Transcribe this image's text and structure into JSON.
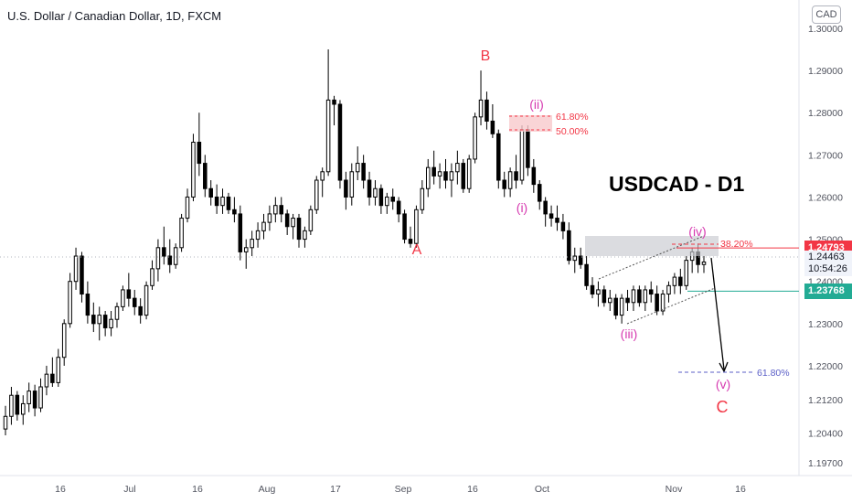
{
  "header": {
    "title": "U.S. Dollar / Canadian Dollar, 1D, FXCM",
    "currency_button": "CAD"
  },
  "price_tags": {
    "upper": {
      "value": "1.24793",
      "color": "#f23645"
    },
    "current": {
      "value": "1.24463",
      "countdown": "10:54:26"
    },
    "lower": {
      "value": "1.23768",
      "color": "#22ab94"
    }
  },
  "annotations": {
    "main_title": "USDCAD - D1",
    "wave_A": "A",
    "wave_B": "B",
    "wave_C": "C",
    "wave_i": "(i)",
    "wave_ii": "(ii)",
    "wave_iii": "(iii)",
    "wave_iv": "(iv)",
    "wave_v": "(v)",
    "fib_618_top": "61.80%",
    "fib_500": "50.00%",
    "fib_382": "38.20%",
    "fib_618_target": "61.80%"
  },
  "colors": {
    "up_candle": "#ffffff",
    "down_candle": "#000000",
    "wave_major": "#f23645",
    "wave_minor": "#d63ab0",
    "resistance_line": "#f23645",
    "support_line": "#22ab94",
    "target_line": "#5b5fc7"
  },
  "chart_data": {
    "type": "candlestick",
    "symbol": "USDCAD",
    "timeframe": "1D",
    "y_axis": {
      "min": 1.195,
      "max": 1.302,
      "ticks": [
        "1.30000",
        "1.29000",
        "1.28000",
        "1.27000",
        "1.26000",
        "1.25000",
        "1.24000",
        "1.23000",
        "1.22000",
        "1.21200",
        "1.20400",
        "1.19700"
      ]
    },
    "x_axis_labels": [
      "16",
      "Jul",
      "16",
      "Aug",
      "17",
      "Sep",
      "16",
      "Oct",
      "Nov",
      "16"
    ],
    "candles": [
      [
        1.205,
        1.2105,
        1.2035,
        1.208
      ],
      [
        1.208,
        1.215,
        1.206,
        1.213
      ],
      [
        1.213,
        1.214,
        1.207,
        1.2085
      ],
      [
        1.2085,
        1.213,
        1.206,
        1.211
      ],
      [
        1.211,
        1.216,
        1.209,
        1.214
      ],
      [
        1.214,
        1.2155,
        1.208,
        1.21
      ],
      [
        1.21,
        1.217,
        1.209,
        1.215
      ],
      [
        1.215,
        1.22,
        1.213,
        1.218
      ],
      [
        1.218,
        1.222,
        1.215,
        1.216
      ],
      [
        1.216,
        1.224,
        1.215,
        1.222
      ],
      [
        1.222,
        1.231,
        1.22,
        1.23
      ],
      [
        1.23,
        1.242,
        1.229,
        1.24
      ],
      [
        1.24,
        1.248,
        1.238,
        1.246
      ],
      [
        1.246,
        1.247,
        1.235,
        1.237
      ],
      [
        1.237,
        1.24,
        1.23,
        1.232
      ],
      [
        1.232,
        1.235,
        1.228,
        1.23
      ],
      [
        1.23,
        1.234,
        1.226,
        1.232
      ],
      [
        1.232,
        1.233,
        1.227,
        1.229
      ],
      [
        1.229,
        1.233,
        1.227,
        1.231
      ],
      [
        1.231,
        1.235,
        1.229,
        1.234
      ],
      [
        1.234,
        1.239,
        1.233,
        1.238
      ],
      [
        1.238,
        1.242,
        1.234,
        1.236
      ],
      [
        1.236,
        1.238,
        1.232,
        1.234
      ],
      [
        1.234,
        1.236,
        1.23,
        1.232
      ],
      [
        1.232,
        1.24,
        1.231,
        1.239
      ],
      [
        1.239,
        1.245,
        1.238,
        1.243
      ],
      [
        1.243,
        1.25,
        1.24,
        1.248
      ],
      [
        1.248,
        1.253,
        1.244,
        1.246
      ],
      [
        1.246,
        1.25,
        1.242,
        1.244
      ],
      [
        1.244,
        1.249,
        1.243,
        1.248
      ],
      [
        1.248,
        1.256,
        1.247,
        1.255
      ],
      [
        1.255,
        1.262,
        1.254,
        1.26
      ],
      [
        1.26,
        1.275,
        1.259,
        1.273
      ],
      [
        1.273,
        1.28,
        1.265,
        1.268
      ],
      [
        1.268,
        1.27,
        1.26,
        1.262
      ],
      [
        1.262,
        1.264,
        1.258,
        1.26
      ],
      [
        1.26,
        1.263,
        1.256,
        1.258
      ],
      [
        1.258,
        1.262,
        1.256,
        1.26
      ],
      [
        1.26,
        1.261,
        1.256,
        1.257
      ],
      [
        1.257,
        1.26,
        1.254,
        1.256
      ],
      [
        1.256,
        1.258,
        1.245,
        1.247
      ],
      [
        1.247,
        1.25,
        1.243,
        1.248
      ],
      [
        1.248,
        1.252,
        1.246,
        1.25
      ],
      [
        1.25,
        1.254,
        1.248,
        1.252
      ],
      [
        1.252,
        1.256,
        1.25,
        1.254
      ],
      [
        1.254,
        1.258,
        1.252,
        1.256
      ],
      [
        1.256,
        1.26,
        1.254,
        1.258
      ],
      [
        1.258,
        1.26,
        1.254,
        1.256
      ],
      [
        1.256,
        1.257,
        1.251,
        1.253
      ],
      [
        1.253,
        1.256,
        1.25,
        1.255
      ],
      [
        1.255,
        1.256,
        1.248,
        1.25
      ],
      [
        1.25,
        1.253,
        1.248,
        1.252
      ],
      [
        1.252,
        1.258,
        1.251,
        1.257
      ],
      [
        1.257,
        1.265,
        1.256,
        1.264
      ],
      [
        1.264,
        1.267,
        1.26,
        1.266
      ],
      [
        1.266,
        1.295,
        1.265,
        1.283
      ],
      [
        1.283,
        1.284,
        1.277,
        1.282
      ],
      [
        1.282,
        1.283,
        1.262,
        1.264
      ],
      [
        1.264,
        1.266,
        1.257,
        1.26
      ],
      [
        1.26,
        1.268,
        1.258,
        1.266
      ],
      [
        1.266,
        1.272,
        1.264,
        1.268
      ],
      [
        1.268,
        1.27,
        1.262,
        1.264
      ],
      [
        1.264,
        1.266,
        1.258,
        1.26
      ],
      [
        1.26,
        1.264,
        1.258,
        1.262
      ],
      [
        1.262,
        1.263,
        1.256,
        1.258
      ],
      [
        1.258,
        1.261,
        1.256,
        1.26
      ],
      [
        1.26,
        1.262,
        1.257,
        1.259
      ],
      [
        1.259,
        1.26,
        1.254,
        1.256
      ],
      [
        1.256,
        1.257,
        1.249,
        1.25
      ],
      [
        1.25,
        1.253,
        1.248,
        1.249
      ],
      [
        1.249,
        1.258,
        1.248,
        1.257
      ],
      [
        1.257,
        1.264,
        1.256,
        1.262
      ],
      [
        1.262,
        1.269,
        1.26,
        1.267
      ],
      [
        1.267,
        1.271,
        1.263,
        1.265
      ],
      [
        1.265,
        1.268,
        1.262,
        1.266
      ],
      [
        1.266,
        1.269,
        1.262,
        1.264
      ],
      [
        1.264,
        1.268,
        1.26,
        1.266
      ],
      [
        1.266,
        1.271,
        1.263,
        1.268
      ],
      [
        1.268,
        1.269,
        1.261,
        1.262
      ],
      [
        1.262,
        1.27,
        1.261,
        1.269
      ],
      [
        1.269,
        1.28,
        1.268,
        1.279
      ],
      [
        1.279,
        1.29,
        1.277,
        1.283
      ],
      [
        1.283,
        1.285,
        1.276,
        1.278
      ],
      [
        1.278,
        1.282,
        1.274,
        1.275
      ],
      [
        1.275,
        1.276,
        1.262,
        1.264
      ],
      [
        1.264,
        1.266,
        1.26,
        1.262
      ],
      [
        1.262,
        1.267,
        1.26,
        1.266
      ],
      [
        1.266,
        1.27,
        1.262,
        1.264
      ],
      [
        1.264,
        1.277,
        1.263,
        1.276
      ],
      [
        1.276,
        1.277,
        1.265,
        1.267
      ],
      [
        1.267,
        1.269,
        1.261,
        1.263
      ],
      [
        1.263,
        1.264,
        1.257,
        1.259
      ],
      [
        1.259,
        1.26,
        1.253,
        1.256
      ],
      [
        1.256,
        1.258,
        1.253,
        1.255
      ],
      [
        1.255,
        1.258,
        1.252,
        1.254
      ],
      [
        1.254,
        1.256,
        1.25,
        1.252
      ],
      [
        1.252,
        1.254,
        1.244,
        1.245
      ],
      [
        1.245,
        1.248,
        1.242,
        1.246
      ],
      [
        1.246,
        1.248,
        1.243,
        1.244
      ],
      [
        1.244,
        1.246,
        1.238,
        1.239
      ],
      [
        1.239,
        1.241,
        1.236,
        1.237
      ],
      [
        1.237,
        1.24,
        1.234,
        1.238
      ],
      [
        1.238,
        1.239,
        1.234,
        1.235
      ],
      [
        1.235,
        1.238,
        1.233,
        1.236
      ],
      [
        1.236,
        1.237,
        1.231,
        1.232
      ],
      [
        1.232,
        1.237,
        1.23,
        1.236
      ],
      [
        1.236,
        1.238,
        1.233,
        1.235
      ],
      [
        1.235,
        1.239,
        1.233,
        1.238
      ],
      [
        1.238,
        1.239,
        1.234,
        1.235
      ],
      [
        1.235,
        1.239,
        1.233,
        1.238
      ],
      [
        1.238,
        1.24,
        1.235,
        1.237
      ],
      [
        1.237,
        1.239,
        1.232,
        1.233
      ],
      [
        1.233,
        1.238,
        1.232,
        1.237
      ],
      [
        1.237,
        1.24,
        1.235,
        1.239
      ],
      [
        1.239,
        1.242,
        1.237,
        1.241
      ],
      [
        1.241,
        1.243,
        1.237,
        1.239
      ],
      [
        1.239,
        1.246,
        1.238,
        1.245
      ],
      [
        1.245,
        1.248,
        1.242,
        1.247
      ],
      [
        1.247,
        1.249,
        1.242,
        1.244
      ],
      [
        1.244,
        1.246,
        1.242,
        1.2446
      ]
    ],
    "horizontal_levels": [
      {
        "label": "1.24793",
        "value": 1.24793
      },
      {
        "label": "1.23768",
        "value": 1.23768
      },
      {
        "label": "61.80%",
        "value": 1.2165
      }
    ]
  }
}
